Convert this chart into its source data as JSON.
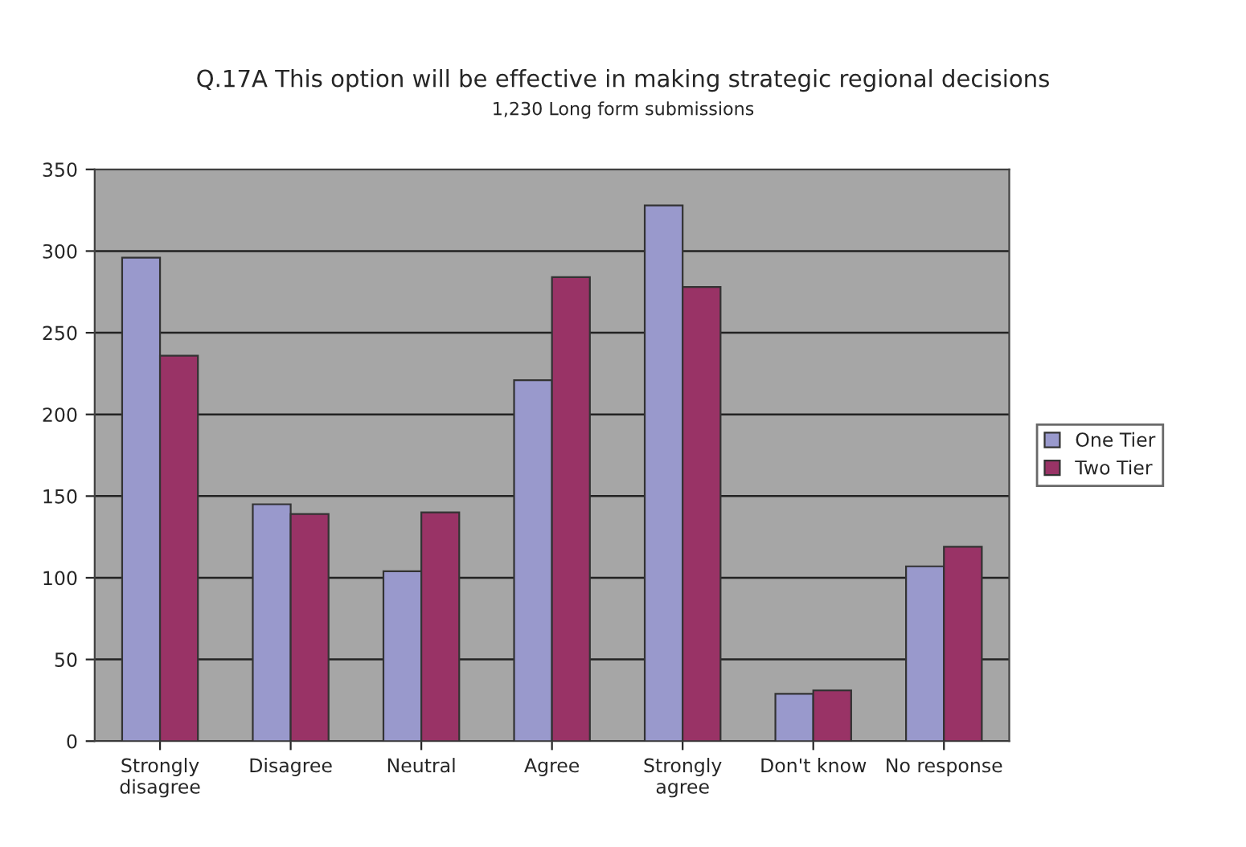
{
  "chart_data": {
    "type": "bar",
    "title": "Q.17A This option will be effective in making strategic regional decisions",
    "subtitle": "1,230 Long form submissions",
    "categories": [
      "Strongly\ndisagree",
      "Disagree",
      "Neutral",
      "Agree",
      "Strongly\nagree",
      "Don't know",
      "No response"
    ],
    "series": [
      {
        "name": "One Tier",
        "color": "#9999cc",
        "values": [
          296,
          145,
          104,
          221,
          328,
          29,
          107
        ]
      },
      {
        "name": "Two Tier",
        "color": "#993366",
        "values": [
          236,
          139,
          140,
          284,
          278,
          31,
          119
        ]
      }
    ],
    "ylim": [
      0,
      350
    ],
    "yticks": [
      0,
      50,
      100,
      150,
      200,
      250,
      300,
      350
    ],
    "grid": "y",
    "legend": "right"
  }
}
